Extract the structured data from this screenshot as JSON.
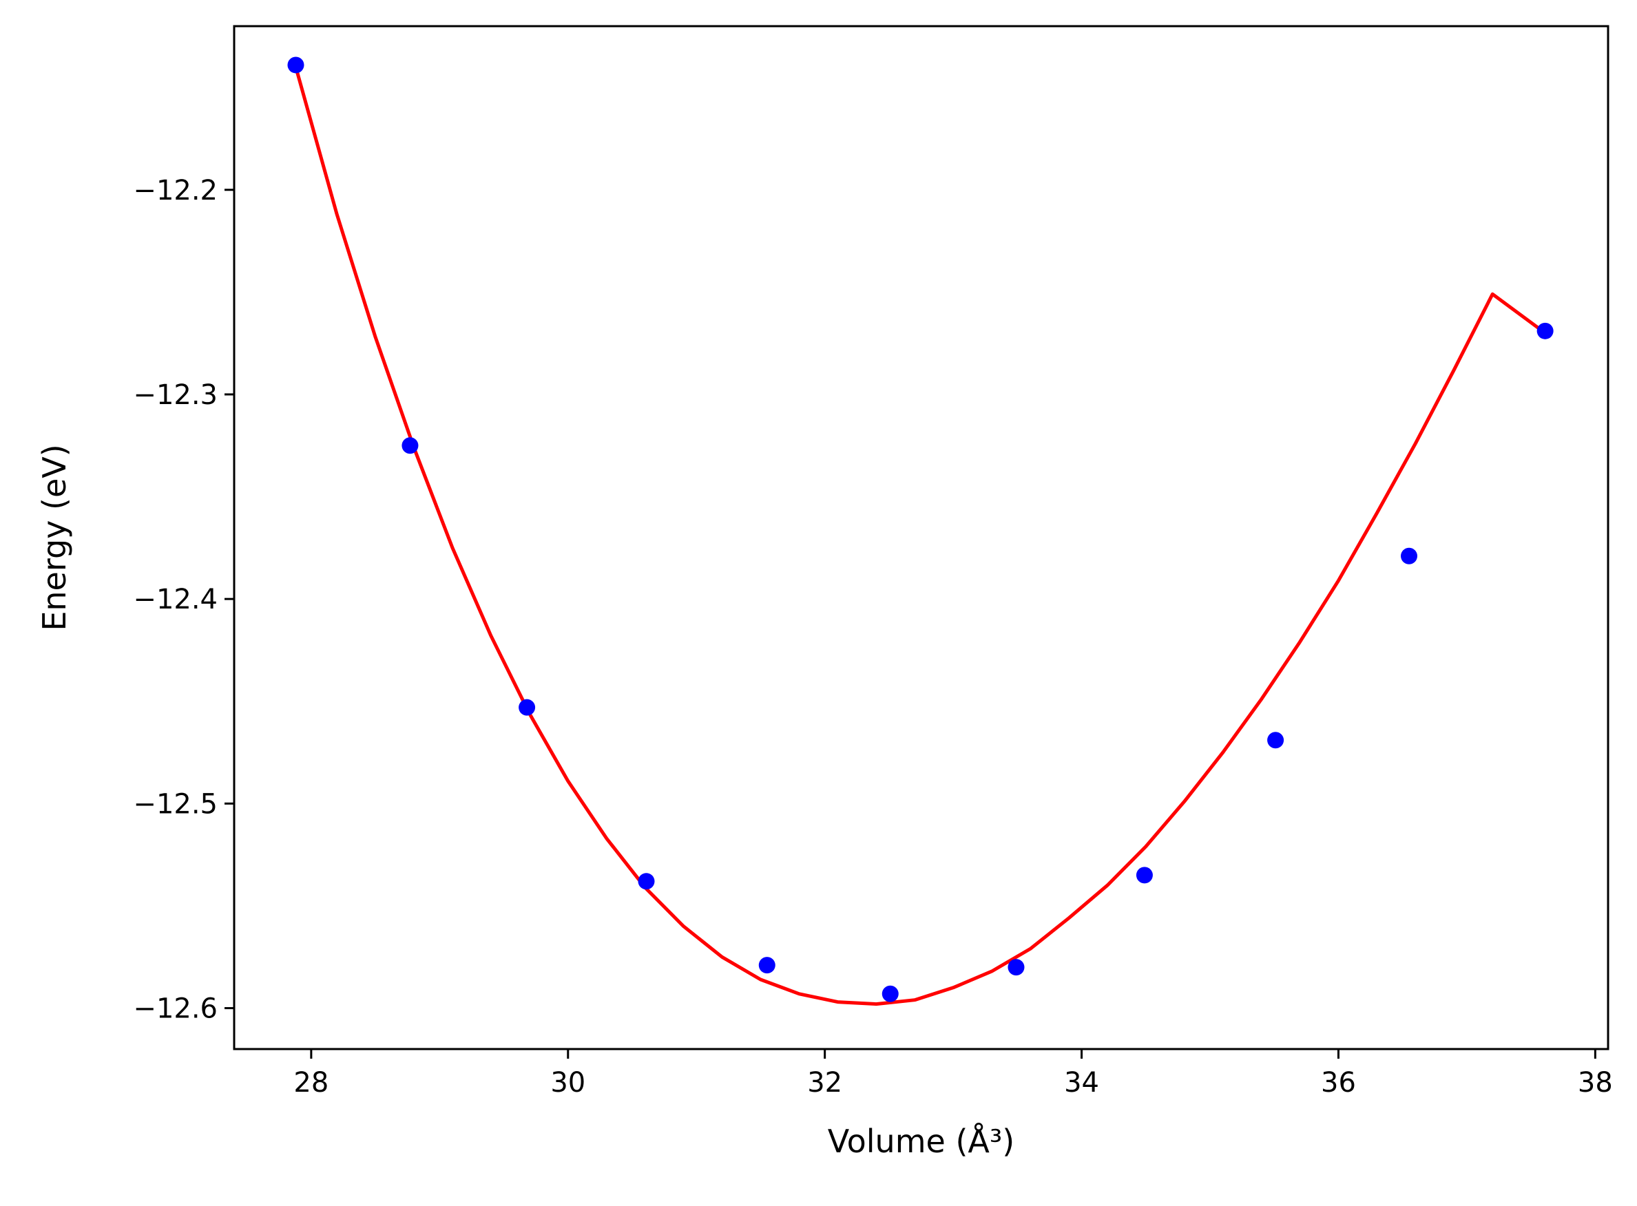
{
  "chart_data": {
    "type": "line",
    "title": "",
    "xlabel": "Volume (Å³)",
    "ylabel": "Energy (eV)",
    "xlim": [
      27.4,
      38.1
    ],
    "ylim": [
      -12.62,
      -12.12
    ],
    "x_ticks": [
      28,
      30,
      32,
      34,
      36,
      38
    ],
    "y_ticks": [
      -12.2,
      -12.3,
      -12.4,
      -12.5,
      -12.6
    ],
    "x_tick_labels": [
      "28",
      "30",
      "32",
      "34",
      "36",
      "38"
    ],
    "y_tick_labels": [
      "−12.2",
      "−12.3",
      "−12.4",
      "−12.5",
      "−12.6"
    ],
    "grid": false,
    "series": [
      {
        "kind": "scatter",
        "color": "#0000ff",
        "x": [
          27.88,
          28.77,
          29.68,
          30.61,
          31.55,
          32.51,
          33.49,
          34.49,
          35.51,
          36.55,
          37.61
        ],
        "y": [
          -12.139,
          -12.325,
          -12.453,
          -12.538,
          -12.579,
          -12.593,
          -12.58,
          -12.535,
          -12.469,
          -12.379,
          -12.269
        ]
      },
      {
        "kind": "fit-line",
        "color": "#ff0000",
        "x": [
          27.88,
          28.2,
          28.5,
          28.8,
          29.1,
          29.4,
          29.7,
          30.0,
          30.3,
          30.6,
          30.9,
          31.2,
          31.5,
          31.8,
          32.1,
          32.4,
          32.7,
          33.0,
          33.3,
          33.6,
          33.9,
          34.2,
          34.5,
          34.8,
          35.1,
          35.4,
          35.7,
          36.0,
          36.3,
          36.6,
          36.9,
          37.2,
          37.61
        ],
        "y": [
          -12.14,
          -12.212,
          -12.272,
          -12.326,
          -12.375,
          -12.418,
          -12.456,
          -12.489,
          -12.517,
          -12.541,
          -12.56,
          -12.575,
          -12.586,
          -12.593,
          -12.597,
          -12.598,
          -12.596,
          -12.59,
          -12.582,
          -12.571,
          -12.556,
          -12.54,
          -12.521,
          -12.499,
          -12.475,
          -12.449,
          -12.421,
          -12.391,
          -12.358,
          -12.324,
          -12.288,
          -12.251,
          -12.27
        ]
      }
    ]
  }
}
